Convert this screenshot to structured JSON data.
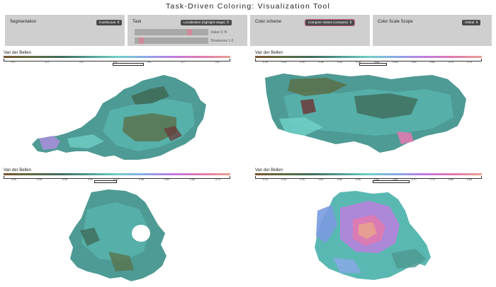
{
  "app": {
    "title": "Task-Driven Coloring: Visualization Tool"
  },
  "controls": {
    "segmentation": {
      "label": "Segmentation",
      "value": "Continuous"
    },
    "task": {
      "label": "Task",
      "value": "Localization (highlight range)",
      "value_slider": {
        "label": "Value",
        "value": "0.76",
        "level": 0.76
      },
      "sharpness_slider": {
        "label": "Sharpness",
        "value": "1.0",
        "level": 0.06
      }
    },
    "color_scheme": {
      "label": "Color scheme",
      "value": "Compare Values (compare)"
    },
    "color_scale_scope": {
      "label": "Color Scale Scope",
      "value": "Global"
    }
  },
  "maps": [
    {
      "id": "austria",
      "title": "Van der Bellen",
      "ticks": [
        "0.0",
        "0.2",
        "0.4",
        "0.5",
        "0.6",
        "0.7",
        "0.8"
      ],
      "highlight_range": [
        0.48,
        0.62
      ]
    },
    {
      "id": "carinthia",
      "title": "Van der Bellen",
      "ticks": [
        "0.20",
        "0.25",
        "0.30",
        "0.35",
        "0.40",
        "0.45",
        "0.50",
        "0.55",
        "0.60",
        "0.65",
        "0.70",
        "0.75"
      ],
      "highlight_range": [
        0.46,
        0.58
      ]
    },
    {
      "id": "lower-austria",
      "title": "Van der Bellen",
      "ticks": [
        "0.20",
        "0.30",
        "0.40",
        "0.45",
        "0.50",
        "0.55",
        "0.60",
        "0.65",
        "0.70"
      ],
      "highlight_range": [
        0.4,
        0.5
      ]
    },
    {
      "id": "vienna",
      "title": "Van der Bellen",
      "ticks": [
        "0.20",
        "0.25",
        "0.30",
        "0.40",
        "0.50",
        "0.55",
        "0.60",
        "0.65",
        "0.70",
        "0.75",
        "0.80",
        "0.85"
      ],
      "highlight_range": [
        0.52,
        0.68
      ]
    }
  ],
  "colors": {
    "panel_bg": "#cfcfcf",
    "select_bg": "#4a4a4a",
    "accent": "#c65b7c",
    "scale_stops": [
      "#7a5230",
      "#5b6b3e",
      "#3f6b58",
      "#4f9a92",
      "#6fd0c8",
      "#8aa8e8",
      "#c07ae0",
      "#e07ab0",
      "#e8a090"
    ]
  }
}
